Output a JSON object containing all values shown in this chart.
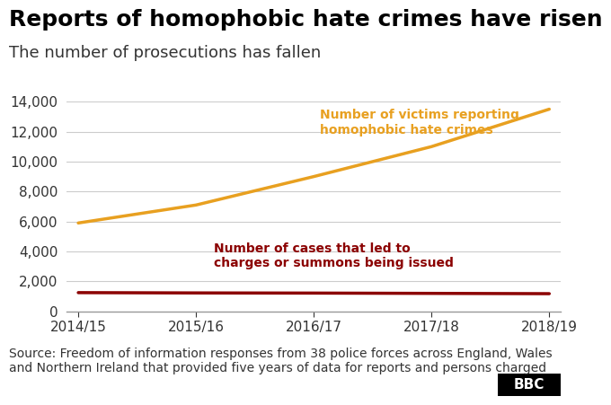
{
  "title": "Reports of homophobic hate crimes have risen",
  "subtitle": "The number of prosecutions has fallen",
  "x_labels": [
    "2014/15",
    "2015/16",
    "2016/17",
    "2017/18",
    "2018/19"
  ],
  "x_values": [
    0,
    1,
    2,
    3,
    4
  ],
  "crimes_values": [
    5900,
    7100,
    9000,
    11000,
    13500
  ],
  "prosecutions_values": [
    1250,
    1230,
    1220,
    1200,
    1180
  ],
  "crimes_color": "#E8A020",
  "prosecutions_color": "#8B0000",
  "crimes_label_line1": "Number of victims reporting",
  "crimes_label_line2": "homophobic hate crimes",
  "prosecutions_label_line1": "Number of cases that led to",
  "prosecutions_label_line2": "charges or summons being issued",
  "ylim": [
    0,
    14000
  ],
  "yticks": [
    0,
    2000,
    4000,
    6000,
    8000,
    10000,
    12000,
    14000
  ],
  "source_text": "Source: Freedom of information responses from 38 police forces across England, Wales\nand Northern Ireland that provided five years of data for reports and persons charged",
  "background_color": "#ffffff",
  "title_fontsize": 18,
  "subtitle_fontsize": 13,
  "tick_fontsize": 11,
  "source_fontsize": 10,
  "grid_color": "#cccccc",
  "bbc_logo_text": "BBC"
}
